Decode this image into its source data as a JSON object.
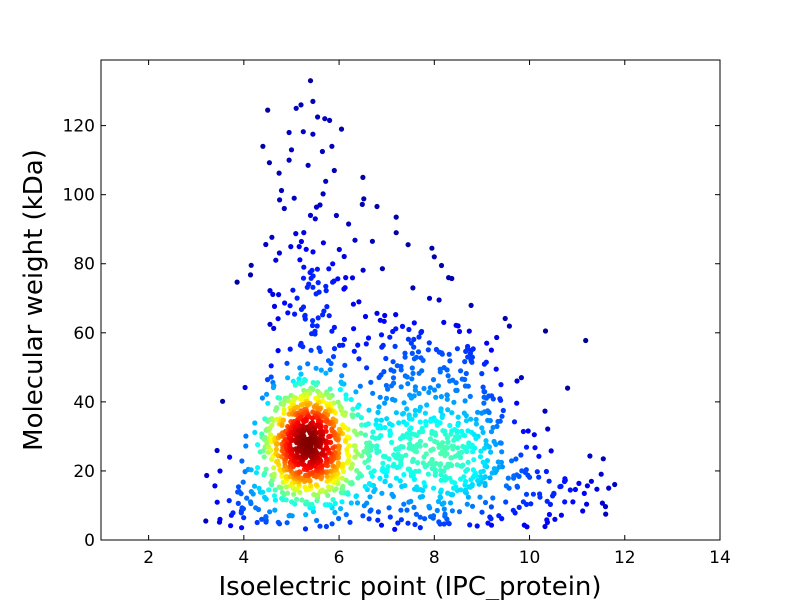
{
  "chart_data": {
    "type": "scatter",
    "title": "",
    "xlabel": "Isoelectric point (IPC_protein)",
    "ylabel": "Molecular weight (kDa)",
    "xlim": [
      1,
      14
    ],
    "ylim": [
      0,
      139
    ],
    "xticks": [
      2,
      4,
      6,
      8,
      10,
      12,
      14
    ],
    "yticks": [
      0,
      20,
      40,
      60,
      80,
      100,
      120
    ],
    "grid": false,
    "legend": "none",
    "colormap": "jet",
    "color_encoding": "point density",
    "clusters": [
      {
        "center_x": 5.35,
        "center_y": 27,
        "spread_x": 0.45,
        "spread_y": 9,
        "count": 750,
        "color_hint": "high-density"
      },
      {
        "center_x": 8.0,
        "center_y": 25,
        "spread_x": 1.1,
        "spread_y": 11,
        "count": 600,
        "color_hint": "mid-density"
      },
      {
        "center_x": 5.5,
        "center_y": 70,
        "spread_x": 0.6,
        "spread_y": 18,
        "count": 120,
        "color_hint": "low-density"
      },
      {
        "center_x": 4.3,
        "center_y": 12,
        "spread_x": 0.5,
        "spread_y": 6,
        "count": 60,
        "color_hint": "low-density"
      },
      {
        "center_x": 7.8,
        "center_y": 52,
        "spread_x": 0.9,
        "spread_y": 8,
        "count": 110,
        "color_hint": "low-density"
      },
      {
        "center_x": 10.6,
        "center_y": 12,
        "spread_x": 0.6,
        "spread_y": 5,
        "count": 35,
        "color_hint": "low-density"
      }
    ],
    "outliers": [
      [
        5.4,
        139
      ],
      [
        5.4,
        133
      ],
      [
        5.45,
        127
      ],
      [
        5.2,
        126
      ],
      [
        5.1,
        125
      ],
      [
        4.5,
        124.5
      ],
      [
        5.55,
        122.5
      ],
      [
        5.7,
        122
      ],
      [
        5.8,
        121.5
      ],
      [
        6.05,
        119
      ],
      [
        4.95,
        118
      ],
      [
        5.45,
        117.5
      ],
      [
        4.4,
        114
      ],
      [
        5.85,
        114
      ],
      [
        5.0,
        113
      ],
      [
        5.65,
        112.5
      ],
      [
        4.95,
        110
      ],
      [
        5.35,
        108.5
      ],
      [
        5.9,
        107
      ],
      [
        6.5,
        105
      ],
      [
        4.75,
        98.5
      ],
      [
        5.6,
        97
      ],
      [
        4.85,
        96
      ],
      [
        5.4,
        94
      ],
      [
        5.5,
        93
      ],
      [
        6.2,
        91.5
      ],
      [
        7.2,
        93.5
      ],
      [
        7.2,
        89
      ],
      [
        7.45,
        85.5
      ],
      [
        7.95,
        84.5
      ],
      [
        6.7,
        86.5
      ],
      [
        8.0,
        82
      ],
      [
        8.15,
        79.5
      ],
      [
        8.3,
        76
      ],
      [
        7.55,
        73
      ],
      [
        7.9,
        70
      ],
      [
        8.1,
        69.5
      ],
      [
        8.2,
        63
      ],
      [
        8.5,
        62
      ],
      [
        9.1,
        57
      ],
      [
        9.2,
        55
      ],
      [
        9.4,
        45
      ],
      [
        10.1,
        30.5
      ],
      [
        10.8,
        44
      ],
      [
        11.55,
        23.5
      ],
      [
        11.3,
        17
      ],
      [
        11.15,
        13.5
      ],
      [
        11.6,
        7.5
      ],
      [
        3.2,
        5.5
      ],
      [
        3.5,
        6
      ],
      [
        3.9,
        14
      ],
      [
        3.7,
        24
      ],
      [
        5.6,
        4
      ],
      [
        6.5,
        7
      ]
    ]
  }
}
